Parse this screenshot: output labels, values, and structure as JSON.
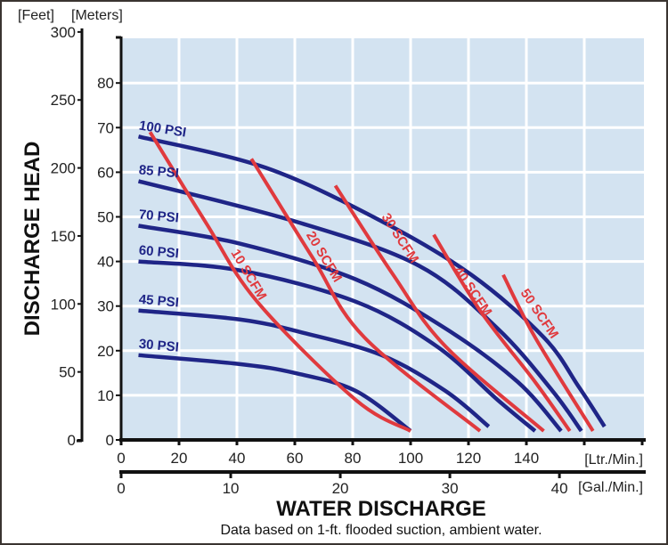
{
  "chart_data": {
    "type": "line",
    "title": "",
    "ylabel": "DISCHARGE HEAD",
    "xlabel": "WATER DISCHARGE",
    "note": "Data based on 1-ft. flooded suction, ambient water.",
    "y_units": {
      "feet": "[Feet]",
      "meters": "[Meters]"
    },
    "x_units": {
      "liters": "[Ltr./Min.]",
      "gallons": "[Gal./Min.]"
    },
    "y_feet_ticks": [
      "0",
      "50",
      "100",
      "150",
      "200",
      "250",
      "300"
    ],
    "y_feet_values": [
      0,
      50,
      100,
      150,
      200,
      250,
      300
    ],
    "y_meter_ticks": [
      "0",
      "10",
      "20",
      "30",
      "40",
      "50",
      "60",
      "70",
      "80"
    ],
    "y_meter_values": [
      0,
      10,
      20,
      30,
      40,
      50,
      60,
      70,
      80
    ],
    "x_liter_ticks": [
      "0",
      "20",
      "40",
      "60",
      "80",
      "100",
      "120",
      "140"
    ],
    "x_liter_values": [
      0,
      20,
      40,
      60,
      80,
      100,
      120,
      140
    ],
    "x_gallon_ticks": [
      "0",
      "10",
      "20",
      "30",
      "40"
    ],
    "x_gallon_values": [
      0,
      10,
      20,
      30,
      40
    ],
    "xlim_liters": [
      0,
      180
    ],
    "ylim_meters": [
      0,
      90
    ],
    "grid": true,
    "colors": {
      "pressure": "#1f2587",
      "air": "#e03a3e",
      "plot_bg": "#d3e3f1",
      "grid": "#ffffff"
    },
    "pressure_series": [
      {
        "name": "100 PSI",
        "points": [
          [
            6,
            68
          ],
          [
            50,
            61
          ],
          [
            90,
            49
          ],
          [
            121,
            37
          ],
          [
            146,
            23
          ],
          [
            158,
            12
          ],
          [
            167,
            3
          ]
        ]
      },
      {
        "name": "85 PSI",
        "points": [
          [
            6,
            58
          ],
          [
            60,
            49
          ],
          [
            103,
            39
          ],
          [
            130,
            25
          ],
          [
            149,
            11
          ],
          [
            159,
            2
          ]
        ]
      },
      {
        "name": "70 PSI",
        "points": [
          [
            6,
            48
          ],
          [
            41,
            44
          ],
          [
            81,
            36
          ],
          [
            112,
            25
          ],
          [
            137,
            13
          ],
          [
            152,
            2
          ]
        ]
      },
      {
        "name": "60 PSI",
        "points": [
          [
            6,
            40
          ],
          [
            41,
            38
          ],
          [
            81,
            31
          ],
          [
            109,
            21
          ],
          [
            130,
            9
          ],
          [
            143,
            2
          ]
        ]
      },
      {
        "name": "45 PSI",
        "points": [
          [
            6,
            29
          ],
          [
            41,
            27
          ],
          [
            63,
            24
          ],
          [
            90,
            19
          ],
          [
            112,
            11
          ],
          [
            127,
            3
          ]
        ]
      },
      {
        "name": "30 PSI",
        "points": [
          [
            6,
            19
          ],
          [
            41,
            17
          ],
          [
            60,
            15
          ],
          [
            81,
            11
          ],
          [
            100,
            2
          ]
        ]
      }
    ],
    "air_series": [
      {
        "name": "10 SCFM",
        "points": [
          [
            10,
            69
          ],
          [
            29,
            49
          ],
          [
            47,
            31
          ],
          [
            81,
            9
          ],
          [
            100,
            2
          ]
        ]
      },
      {
        "name": "20 SCFM",
        "points": [
          [
            45,
            63
          ],
          [
            66,
            41
          ],
          [
            84,
            23
          ],
          [
            124,
            2
          ]
        ]
      },
      {
        "name": "30 SCFM",
        "points": [
          [
            74,
            57
          ],
          [
            94,
            37
          ],
          [
            112,
            21
          ],
          [
            146,
            2
          ]
        ]
      },
      {
        "name": "40 SCFM",
        "points": [
          [
            108,
            46
          ],
          [
            124,
            29
          ],
          [
            143,
            13
          ],
          [
            155,
            2
          ]
        ]
      },
      {
        "name": "50 SCFM",
        "points": [
          [
            132,
            37
          ],
          [
            143,
            23
          ],
          [
            163,
            2
          ]
        ]
      }
    ]
  }
}
